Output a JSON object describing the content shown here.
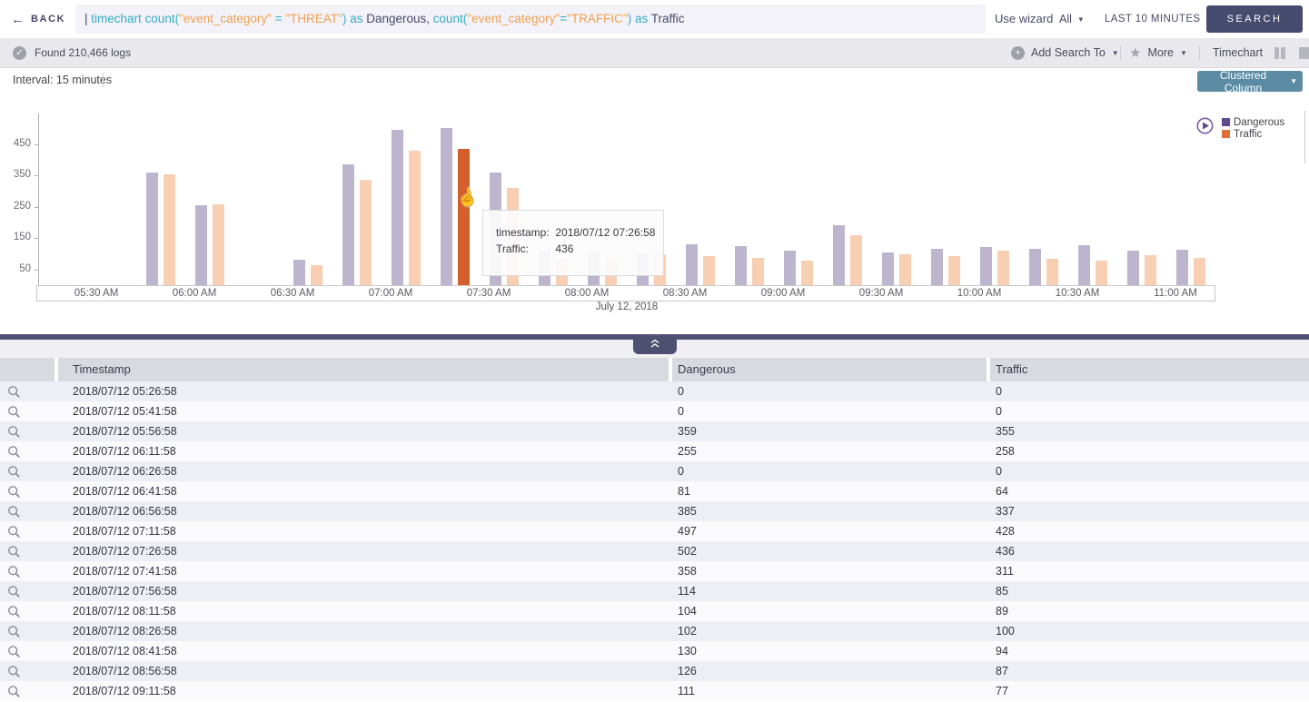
{
  "topbar": {
    "back_label": "BACK",
    "query_segments": [
      {
        "text": "| ",
        "color": "slate"
      },
      {
        "text": "timechart ",
        "color": "teal"
      },
      {
        "text": "count(",
        "color": "teal"
      },
      {
        "text": "\"event_category\" ",
        "color": "orange"
      },
      {
        "text": "= ",
        "color": "teal"
      },
      {
        "text": "\"THREAT\"",
        "color": "orange"
      },
      {
        "text": ") ",
        "color": "teal"
      },
      {
        "text": "as ",
        "color": "teal"
      },
      {
        "text": "Dangerous, ",
        "color": "slate"
      },
      {
        "text": "count(",
        "color": "teal"
      },
      {
        "text": "\"event_category\"",
        "color": "orange"
      },
      {
        "text": "=",
        "color": "teal"
      },
      {
        "text": "\"TRAFFIC\"",
        "color": "orange"
      },
      {
        "text": ") ",
        "color": "teal"
      },
      {
        "text": "as ",
        "color": "teal"
      },
      {
        "text": "Traffic",
        "color": "slate"
      }
    ],
    "use_wizard_label": "Use wizard",
    "scope_value": "All",
    "time_range_value": "LAST 10 MINUTES",
    "search_label": "SEARCH"
  },
  "statusbar": {
    "found_text": "Found 210,466 logs",
    "add_search_to_label": "Add Search To",
    "more_label": "More",
    "view_label": "Timechart"
  },
  "chart_panel": {
    "interval_label": "Interval: 15 minutes",
    "chart_type_value": "Clustered Column",
    "date_label": "July 12, 2018",
    "tooltip": {
      "timestamp_label": "timestamp:",
      "timestamp_value": "2018/07/12 07:26:58",
      "series_label": "Traffic:",
      "series_value": "436"
    }
  },
  "chart_data": {
    "type": "bar",
    "title": "",
    "xlabel": "July 12, 2018",
    "ylabel": "",
    "ylim": [
      0,
      520
    ],
    "grid": false,
    "legend_position": "top-right",
    "interval": "15 minutes",
    "x": [
      "2018/07/12 05:26:58",
      "2018/07/12 05:41:58",
      "2018/07/12 05:56:58",
      "2018/07/12 06:11:58",
      "2018/07/12 06:26:58",
      "2018/07/12 06:41:58",
      "2018/07/12 06:56:58",
      "2018/07/12 07:11:58",
      "2018/07/12 07:26:58",
      "2018/07/12 07:41:58",
      "2018/07/12 07:56:58",
      "2018/07/12 08:11:58",
      "2018/07/12 08:26:58",
      "2018/07/12 08:41:58",
      "2018/07/12 08:56:58",
      "2018/07/12 09:11:58",
      "2018/07/12 09:26:58",
      "2018/07/12 09:41:58",
      "2018/07/12 09:56:58",
      "2018/07/12 10:11:58",
      "2018/07/12 10:26:58",
      "2018/07/12 10:41:58",
      "2018/07/12 10:56:58",
      "2018/07/12 11:11:58"
    ],
    "series": [
      {
        "name": "Dangerous",
        "color": "#5e4b8b",
        "bar_color": "#bdb4cd",
        "values": [
          0,
          0,
          359,
          255,
          0,
          81,
          385,
          497,
          502,
          358,
          114,
          104,
          102,
          130,
          126,
          111,
          190,
          103,
          115,
          121,
          116,
          127,
          111,
          112
        ]
      },
      {
        "name": "Traffic",
        "color": "#e2703a",
        "bar_color": "#f8cfb3",
        "values": [
          0,
          0,
          355,
          258,
          0,
          64,
          337,
          428,
          436,
          311,
          85,
          89,
          100,
          94,
          87,
          77,
          160,
          98,
          92,
          110,
          85,
          79,
          97,
          87
        ]
      }
    ],
    "highlight": {
      "series": "Traffic",
      "index": 8,
      "color": "#d2602c"
    },
    "y_ticks": [
      50,
      150,
      250,
      350,
      450
    ],
    "x_axis_labels": [
      "05:30 AM",
      "06:00 AM",
      "06:30 AM",
      "07:00 AM",
      "07:30 AM",
      "08:00 AM",
      "08:30 AM",
      "09:00 AM",
      "09:30 AM",
      "10:00 AM",
      "10:30 AM",
      "11:00 AM"
    ]
  },
  "table": {
    "columns": [
      "Timestamp",
      "Dangerous",
      "Traffic"
    ],
    "rows": [
      [
        "2018/07/12 05:26:58",
        "0",
        "0"
      ],
      [
        "2018/07/12 05:41:58",
        "0",
        "0"
      ],
      [
        "2018/07/12 05:56:58",
        "359",
        "355"
      ],
      [
        "2018/07/12 06:11:58",
        "255",
        "258"
      ],
      [
        "2018/07/12 06:26:58",
        "0",
        "0"
      ],
      [
        "2018/07/12 06:41:58",
        "81",
        "64"
      ],
      [
        "2018/07/12 06:56:58",
        "385",
        "337"
      ],
      [
        "2018/07/12 07:11:58",
        "497",
        "428"
      ],
      [
        "2018/07/12 07:26:58",
        "502",
        "436"
      ],
      [
        "2018/07/12 07:41:58",
        "358",
        "311"
      ],
      [
        "2018/07/12 07:56:58",
        "114",
        "85"
      ],
      [
        "2018/07/12 08:11:58",
        "104",
        "89"
      ],
      [
        "2018/07/12 08:26:58",
        "102",
        "100"
      ],
      [
        "2018/07/12 08:41:58",
        "130",
        "94"
      ],
      [
        "2018/07/12 08:56:58",
        "126",
        "87"
      ],
      [
        "2018/07/12 09:11:58",
        "111",
        "77"
      ]
    ]
  }
}
